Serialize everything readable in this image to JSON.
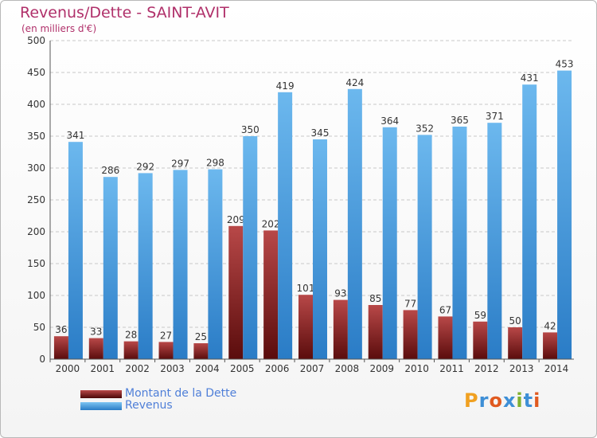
{
  "header": {
    "title": "Revenus/Dette - SAINT-AVIT",
    "subtitle": "(en milliers d'€)"
  },
  "colors": {
    "debt": "#7a1a1a",
    "debt_light": "#b85050",
    "revenue": "#3e8fd6",
    "revenue_light": "#6cb8ee",
    "title": "#b0306a",
    "legend_text": "#4f7fd8"
  },
  "chart_data": {
    "type": "bar",
    "title": "Revenus/Dette - SAINT-AVIT",
    "subtitle": "(en milliers d'€)",
    "categories": [
      "2000",
      "2001",
      "2002",
      "2003",
      "2004",
      "2005",
      "2006",
      "2007",
      "2008",
      "2009",
      "2010",
      "2011",
      "2012",
      "2013",
      "2014"
    ],
    "series": [
      {
        "name": "Montant de la Dette",
        "values": [
          36,
          33,
          28,
          27,
          25,
          209,
          202,
          101,
          93,
          85,
          77,
          67,
          59,
          50,
          42
        ]
      },
      {
        "name": "Revenus",
        "values": [
          341,
          286,
          292,
          297,
          298,
          350,
          419,
          345,
          424,
          364,
          352,
          365,
          371,
          431,
          453
        ]
      }
    ],
    "ylim": [
      0,
      500
    ],
    "yticks": [
      0,
      50,
      100,
      150,
      200,
      250,
      300,
      350,
      400,
      450,
      500
    ],
    "grid": true,
    "legend_position": "bottom-left"
  },
  "legend": {
    "items": [
      {
        "label": "Montant de la Dette",
        "color_key": "debt"
      },
      {
        "label": "Revenus",
        "color_key": "revenue"
      }
    ]
  },
  "logo": {
    "letters": [
      "P",
      "r",
      "o",
      "x",
      "i",
      "t",
      "i"
    ],
    "colors": [
      "#f0a020",
      "#3e8fd6",
      "#e05a20",
      "#3e8fd6",
      "#80b030",
      "#3e8fd6",
      "#e05a20"
    ]
  }
}
